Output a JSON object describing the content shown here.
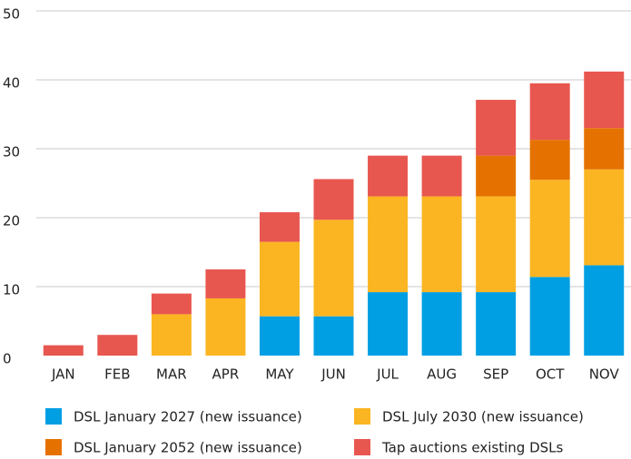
{
  "chart_data": {
    "type": "stacked_bar",
    "categories": [
      "JAN",
      "FEB",
      "MAR",
      "APR",
      "MAY",
      "JUN",
      "JUL",
      "AUG",
      "SEP",
      "OCT",
      "NOV"
    ],
    "series": [
      {
        "name": "DSL January 2027 (new issuance)",
        "color": "#009fe3",
        "values": [
          null,
          null,
          null,
          null,
          5.7,
          5.7,
          9.2,
          9.2,
          9.2,
          11.4,
          13.1
        ]
      },
      {
        "name": "DSL July 2030 (new issuance)",
        "color": "#fbb522",
        "values": [
          null,
          null,
          6,
          8.3,
          10.8,
          14,
          13.9,
          13.9,
          13.9,
          14.1,
          13.9
        ]
      },
      {
        "name": "DSL January 2052 (new issuance)",
        "color": "#e57200",
        "values": [
          null,
          null,
          null,
          null,
          null,
          null,
          null,
          null,
          5.9,
          5.8,
          6
        ]
      },
      {
        "name": "Tap auctions existing DSLs",
        "color": "#e8574f",
        "values": [
          1.5,
          3,
          3,
          4.2,
          4.3,
          5.9,
          5.9,
          5.9,
          8.1,
          8.2,
          8.2
        ]
      }
    ],
    "ylim": [
      0,
      50
    ],
    "yticks": [
      0,
      10,
      20,
      30,
      40,
      50
    ],
    "grid": true
  }
}
